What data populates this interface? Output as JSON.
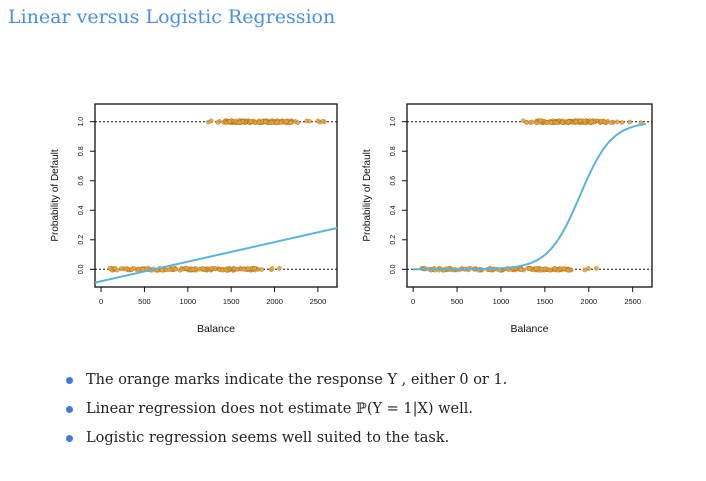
{
  "slide": {
    "title": "Linear versus Logistic Regression",
    "bullets": [
      "The orange marks indicate the response Y , either 0 or 1.",
      "Linear regression does not estimate ℙ(Y = 1|X) well.",
      "Logistic regression seems well suited to the task."
    ]
  },
  "colors": {
    "title": "#4a90e2",
    "bullet": "#3d7bd6",
    "fit_line": "#5ab4dc",
    "marks": "#e8a23a"
  },
  "chart_data": [
    {
      "type": "scatter",
      "panel": "linear",
      "xlabel": "Balance",
      "ylabel": "Probability of Default",
      "xlim": [
        -70,
        2720
      ],
      "ylim": [
        -0.12,
        1.12
      ],
      "xticks": [
        0,
        500,
        1000,
        1500,
        2000,
        2500
      ],
      "yticks": [
        0.0,
        0.2,
        0.4,
        0.6,
        0.8,
        1.0
      ],
      "reference_lines": [
        0,
        1
      ],
      "response_marks": [
        {
          "y": 0,
          "x_range": [
            0,
            2100
          ],
          "dense_range": [
            100,
            1800
          ]
        },
        {
          "y": 1,
          "x_range": [
            1200,
            2600
          ],
          "dense_range": [
            1400,
            2200
          ]
        }
      ],
      "fit": {
        "model": "linear",
        "points": [
          [
            -70,
            -0.09
          ],
          [
            2720,
            0.28
          ]
        ]
      }
    },
    {
      "type": "scatter",
      "panel": "logistic",
      "xlabel": "Balance",
      "ylabel": "Probability of Default",
      "xlim": [
        -70,
        2720
      ],
      "ylim": [
        -0.12,
        1.12
      ],
      "xticks": [
        0,
        500,
        1000,
        1500,
        2000,
        2500
      ],
      "yticks": [
        0.0,
        0.2,
        0.4,
        0.6,
        0.8,
        1.0
      ],
      "reference_lines": [
        0,
        1
      ],
      "response_marks": [
        {
          "y": 0,
          "x_range": [
            0,
            2100
          ],
          "dense_range": [
            100,
            1800
          ]
        },
        {
          "y": 1,
          "x_range": [
            1200,
            2600
          ],
          "dense_range": [
            1400,
            2200
          ]
        }
      ],
      "fit": {
        "model": "logistic",
        "midpoint": 1900,
        "scale": 180,
        "x_range": [
          0,
          2650
        ]
      }
    }
  ]
}
